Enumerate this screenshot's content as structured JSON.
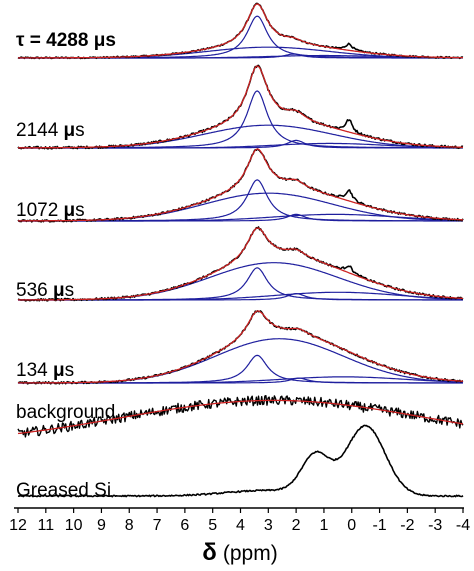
{
  "chart_data": {
    "type": "line",
    "title": "",
    "xlabel": {
      "symbol": "δ",
      "unit": "(ppm)"
    },
    "ylabel": "",
    "x_axis": {
      "range": [
        12,
        -4
      ],
      "reversed": true,
      "ticks": [
        "12",
        "11",
        "10",
        "9",
        "8",
        "7",
        "6",
        "5",
        "4",
        "3",
        "2",
        "1",
        "0",
        "-1",
        "-2",
        "-3",
        "-4"
      ]
    },
    "grid": false,
    "legend": "none",
    "colors": {
      "experimental": "#000000",
      "fit_envelope": "#cc2222",
      "components": "#1f1f9e"
    },
    "panels": [
      {
        "name": "τ = 4288 μs",
        "label_prefix": "τ = 4288 ",
        "label_mu": "μ",
        "label_suffix": "s",
        "peak_height": 1.0,
        "components": [
          {
            "center_ppm": 3.4,
            "width_ppm": 0.45,
            "amplitude": 0.85
          },
          {
            "center_ppm": 3.0,
            "width_ppm": 2.2,
            "amplitude": 0.22
          },
          {
            "center_ppm": 2.1,
            "width_ppm": 0.4,
            "amplitude": 0.08
          },
          {
            "center_ppm": 1.0,
            "width_ppm": 2.0,
            "amplitude": 0.05
          }
        ],
        "si_peak": {
          "center_ppm": 0.1,
          "amplitude": 0.12
        }
      },
      {
        "name": "2144 μs",
        "label_prefix": "2144 ",
        "label_mu": "μ",
        "label_suffix": "s",
        "peak_height": 1.0,
        "components": [
          {
            "center_ppm": 3.4,
            "width_ppm": 0.45,
            "amplitude": 0.75
          },
          {
            "center_ppm": 3.0,
            "width_ppm": 2.3,
            "amplitude": 0.3
          },
          {
            "center_ppm": 2.0,
            "width_ppm": 0.4,
            "amplitude": 0.1
          },
          {
            "center_ppm": 0.8,
            "width_ppm": 2.0,
            "amplitude": 0.06
          }
        ],
        "si_peak": {
          "center_ppm": 0.1,
          "amplitude": 0.15
        }
      },
      {
        "name": "1072 μs",
        "label_prefix": "1072 ",
        "label_mu": "μ",
        "label_suffix": "s",
        "peak_height": 1.0,
        "components": [
          {
            "center_ppm": 3.4,
            "width_ppm": 0.45,
            "amplitude": 0.62
          },
          {
            "center_ppm": 3.0,
            "width_ppm": 2.3,
            "amplitude": 0.42
          },
          {
            "center_ppm": 2.0,
            "width_ppm": 0.4,
            "amplitude": 0.1
          },
          {
            "center_ppm": 0.6,
            "width_ppm": 2.2,
            "amplitude": 0.1
          }
        ],
        "si_peak": {
          "center_ppm": 0.1,
          "amplitude": 0.15
        }
      },
      {
        "name": "536 μs",
        "label_prefix": "536 ",
        "label_mu": "μ",
        "label_suffix": "s",
        "peak_height": 1.0,
        "components": [
          {
            "center_ppm": 3.4,
            "width_ppm": 0.45,
            "amplitude": 0.5
          },
          {
            "center_ppm": 2.8,
            "width_ppm": 2.3,
            "amplitude": 0.58
          },
          {
            "center_ppm": 2.0,
            "width_ppm": 0.4,
            "amplitude": 0.1
          },
          {
            "center_ppm": 0.5,
            "width_ppm": 2.2,
            "amplitude": 0.12
          }
        ],
        "si_peak": {
          "center_ppm": 0.1,
          "amplitude": 0.1
        }
      },
      {
        "name": "134 μs",
        "label_prefix": "134 ",
        "label_mu": "μ",
        "label_suffix": "s",
        "peak_height": 1.0,
        "components": [
          {
            "center_ppm": 3.4,
            "width_ppm": 0.45,
            "amplitude": 0.45
          },
          {
            "center_ppm": 2.6,
            "width_ppm": 2.3,
            "amplitude": 0.72
          },
          {
            "center_ppm": 1.9,
            "width_ppm": 0.4,
            "amplitude": 0.08
          },
          {
            "center_ppm": 0.3,
            "width_ppm": 2.2,
            "amplitude": 0.1
          }
        ],
        "si_peak": {
          "center_ppm": 0.1,
          "amplitude": 0.0
        }
      },
      {
        "name": "background",
        "label_prefix": "background",
        "label_mu": "",
        "label_suffix": "",
        "broad_hump": {
          "center_ppm": 2.8,
          "width_ppm": 5.5,
          "amplitude": 1.0
        }
      },
      {
        "name": "Greased Si",
        "label_prefix": "Greased Si",
        "label_mu": "",
        "label_suffix": "",
        "peaks": [
          {
            "center_ppm": 1.3,
            "width_ppm": 0.5,
            "amplitude": 0.55
          },
          {
            "center_ppm": -0.5,
            "width_ppm": 0.7,
            "amplitude": 1.0
          },
          {
            "center_ppm": 3.0,
            "width_ppm": 1.5,
            "amplitude": 0.08
          }
        ]
      }
    ]
  }
}
